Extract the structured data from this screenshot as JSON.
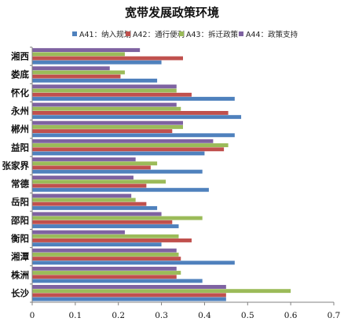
{
  "chart_data": {
    "type": "bar",
    "orientation": "horizontal",
    "title": "宽带发展政策环境",
    "categories": [
      "湘西",
      "娄底",
      "怀化",
      "永州",
      "郴州",
      "益阳",
      "张家界",
      "常德",
      "岳阳",
      "邵阳",
      "衡阳",
      "湘潭",
      "株洲",
      "长沙"
    ],
    "series": [
      {
        "name": "A44：政策支持",
        "color": "#7e62a1",
        "values": [
          0.25,
          0.18,
          0.335,
          0.335,
          0.35,
          0.42,
          0.24,
          0.235,
          0.23,
          0.3,
          0.215,
          0.335,
          0.335,
          0.45
        ]
      },
      {
        "name": "A43：拆迁政策",
        "color": "#9bbb59",
        "values": [
          0.215,
          0.215,
          0.335,
          0.345,
          0.35,
          0.455,
          0.29,
          0.31,
          0.24,
          0.395,
          0.34,
          0.34,
          0.345,
          0.6
        ]
      },
      {
        "name": "A42：通行便利",
        "color": "#c0504d",
        "values": [
          0.35,
          0.205,
          0.37,
          0.455,
          0.325,
          0.445,
          0.275,
          0.265,
          0.265,
          0.325,
          0.37,
          0.345,
          0.335,
          0.45
        ]
      },
      {
        "name": "A41：纳入规划",
        "color": "#4f81bd",
        "values": [
          0.3,
          0.29,
          0.47,
          0.485,
          0.47,
          0.4,
          0.395,
          0.41,
          0.29,
          0.34,
          0.3,
          0.47,
          0.395,
          0.45
        ]
      }
    ],
    "x_ticks": [
      "0",
      "0.1",
      "0.2",
      "0.3",
      "0.4",
      "0.5",
      "0.6",
      "0.7"
    ],
    "xlim": [
      0,
      0.7
    ],
    "xlabel": "",
    "ylabel": "",
    "grid": false,
    "legend_position": "top"
  }
}
